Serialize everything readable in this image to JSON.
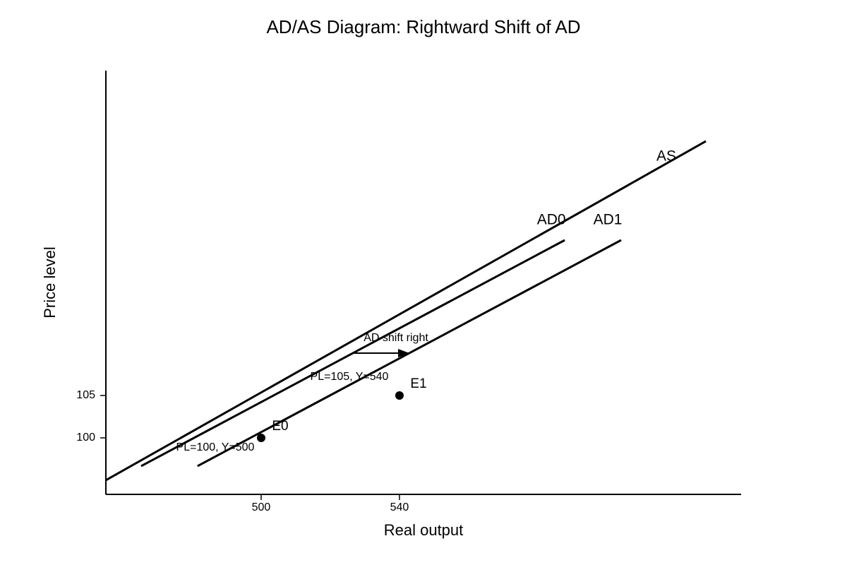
{
  "chart_data": {
    "type": "line",
    "title": "AD/AS Diagram: Rightward Shift of AD",
    "xlabel": "Real output",
    "ylabel": "Price level",
    "xlim": [
      455.1,
      638.8
    ],
    "ylim": [
      93.33,
      143.33
    ],
    "xticks": [
      500,
      540
    ],
    "yticks": [
      100,
      105
    ],
    "series": [
      {
        "name": "AS",
        "color": "#000000",
        "x": [
          455.1,
          628.6
        ],
        "values": [
          95,
          135
        ]
      },
      {
        "name": "AD0",
        "color": "#000000",
        "x": [
          465.3,
          587.8
        ],
        "values": [
          96.67,
          123.33
        ]
      },
      {
        "name": "AD1",
        "color": "#000000",
        "x": [
          481.6,
          604.1
        ],
        "values": [
          96.67,
          123.33
        ]
      }
    ],
    "points": {
      "labels": [
        "E0",
        "E1"
      ],
      "x": [
        500,
        540
      ],
      "values": [
        100,
        105
      ],
      "color": "#000000"
    },
    "annotations": [
      "PL=100, Y=500",
      "PL=105, Y=540",
      "AD shift right"
    ]
  }
}
